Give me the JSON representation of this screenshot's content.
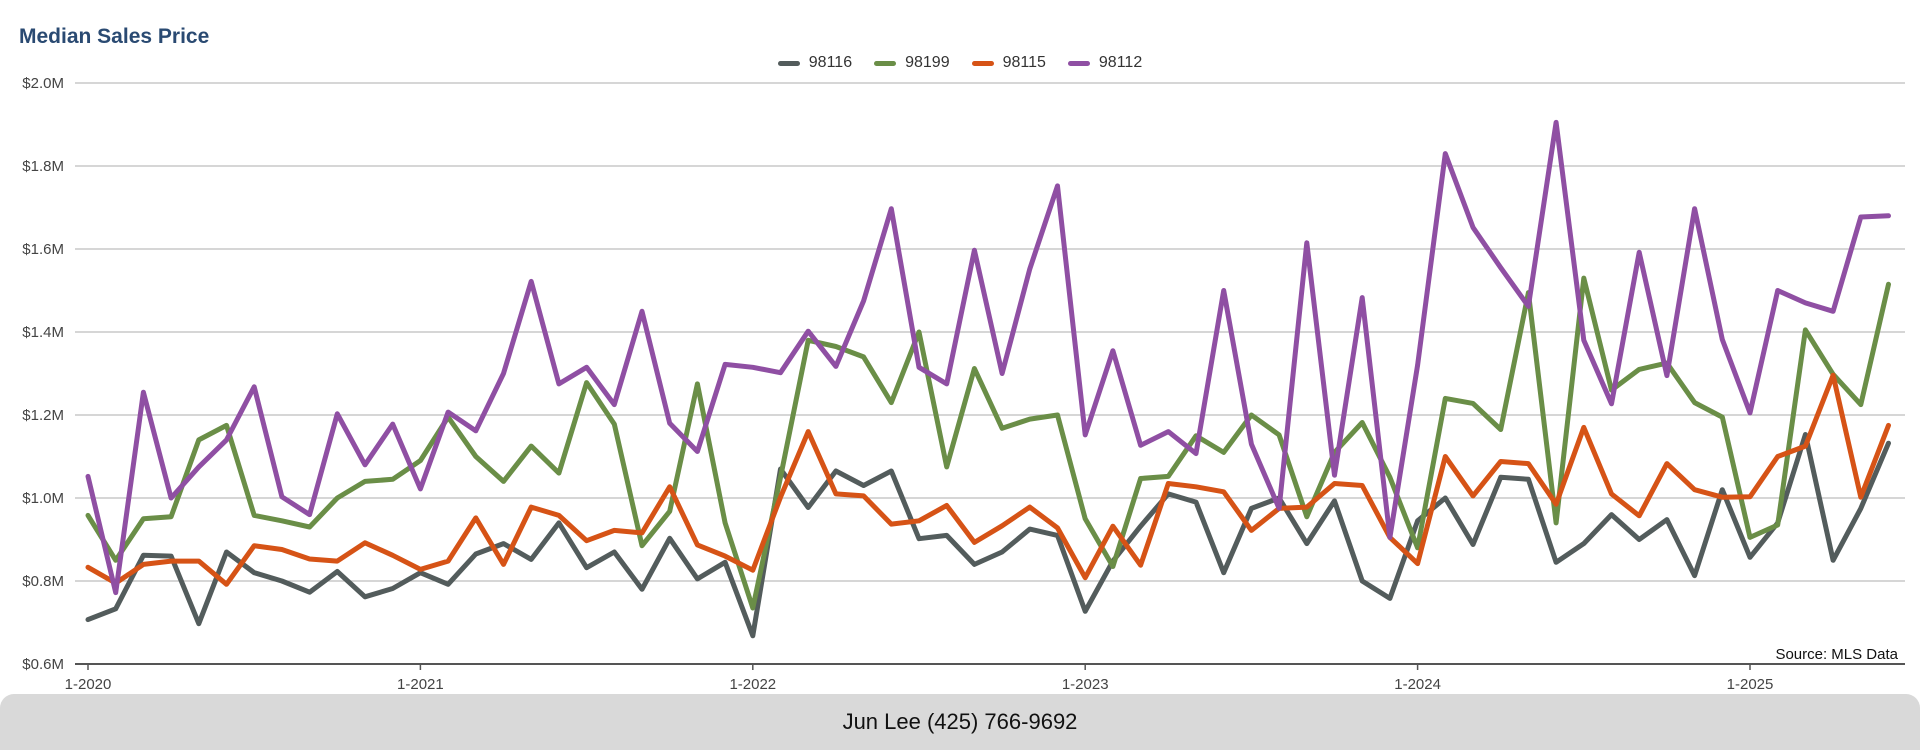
{
  "chart_data": {
    "type": "line",
    "title": "Median Sales Price",
    "xlabel": "",
    "ylabel": "",
    "ylim": [
      600000,
      2000000
    ],
    "y_ticks": [
      "$0.6M",
      "$0.8M",
      "$1.0M",
      "$1.2M",
      "$1.4M",
      "$1.6M",
      "$1.8M",
      "$2.0M"
    ],
    "x_ticks": [
      "1-2020",
      "1-2021",
      "1-2022",
      "1-2023",
      "1-2024",
      "1-2025"
    ],
    "x_start": "2020-01",
    "grid": true,
    "legend_position": "top-center",
    "series": [
      {
        "name": "98116",
        "color": "#535c5c",
        "values": [
          707000,
          733000,
          862000,
          860000,
          697000,
          870000,
          820000,
          800000,
          773000,
          823000,
          762000,
          782000,
          820000,
          792000,
          865000,
          890000,
          852000,
          940000,
          832000,
          870000,
          780000,
          903000,
          805000,
          845000,
          668000,
          1070000,
          977000,
          1065000,
          1030000,
          1065000,
          902000,
          910000,
          840000,
          870000,
          925000,
          910000,
          727000,
          848000,
          932000,
          1010000,
          990000,
          820000,
          975000,
          1000000,
          890000,
          993000,
          800000,
          758000,
          945000,
          1000000,
          888000,
          1050000,
          1045000,
          845000,
          890000,
          960000,
          900000,
          948000,
          813000,
          1020000,
          857000,
          940000,
          1153000,
          850000,
          975000,
          1132000
        ]
      },
      {
        "name": "98199",
        "color": "#6a8e47",
        "values": [
          958000,
          850000,
          950000,
          955000,
          1140000,
          1175000,
          958000,
          945000,
          930000,
          1000000,
          1040000,
          1045000,
          1090000,
          1195000,
          1100000,
          1040000,
          1125000,
          1060000,
          1278000,
          1178000,
          885000,
          968000,
          1275000,
          940000,
          735000,
          1050000,
          1380000,
          1365000,
          1340000,
          1230000,
          1400000,
          1075000,
          1312000,
          1168000,
          1190000,
          1200000,
          950000,
          835000,
          1047000,
          1052000,
          1150000,
          1110000,
          1200000,
          1152000,
          955000,
          1110000,
          1182000,
          1050000,
          880000,
          1240000,
          1228000,
          1165000,
          1495000,
          940000,
          1530000,
          1260000,
          1310000,
          1325000,
          1230000,
          1195000,
          905000,
          935000,
          1405000,
          1298000,
          1225000,
          1515000
        ]
      },
      {
        "name": "98115",
        "color": "#d65316",
        "values": [
          833000,
          795000,
          840000,
          848000,
          848000,
          792000,
          885000,
          876000,
          853000,
          848000,
          892000,
          862000,
          828000,
          848000,
          952000,
          840000,
          978000,
          958000,
          897000,
          922000,
          916000,
          1027000,
          887000,
          860000,
          826000,
          1002000,
          1160000,
          1010000,
          1005000,
          937000,
          945000,
          982000,
          893000,
          933000,
          978000,
          928000,
          808000,
          932000,
          838000,
          1035000,
          1027000,
          1015000,
          922000,
          975000,
          978000,
          1035000,
          1030000,
          905000,
          842000,
          1100000,
          1005000,
          1088000,
          1083000,
          985000,
          1170000,
          1010000,
          957000,
          1083000,
          1020000,
          1002000,
          1003000,
          1100000,
          1125000,
          1296000,
          1002000,
          1175000
        ]
      },
      {
        "name": "98112",
        "color": "#8f4fa3",
        "values": [
          1052000,
          772000,
          1255000,
          1000000,
          1075000,
          1140000,
          1268000,
          1003000,
          960000,
          1203000,
          1080000,
          1178000,
          1022000,
          1207000,
          1162000,
          1300000,
          1522000,
          1275000,
          1315000,
          1225000,
          1450000,
          1180000,
          1112000,
          1322000,
          1315000,
          1302000,
          1402000,
          1317000,
          1475000,
          1697000,
          1315000,
          1275000,
          1597000,
          1300000,
          1552000,
          1752000,
          1152000,
          1355000,
          1127000,
          1160000,
          1107000,
          1500000,
          1130000,
          975000,
          1615000,
          1055000,
          1483000,
          905000,
          1320000,
          1830000,
          1652000,
          1555000,
          1462000,
          1905000,
          1380000,
          1227000,
          1592000,
          1295000,
          1697000,
          1382000,
          1205000,
          1500000,
          1470000,
          1450000,
          1677000,
          1680000
        ]
      }
    ],
    "annotation": "Source: MLS Data"
  },
  "footer": {
    "text": "Jun Lee (425) 766-9692"
  }
}
